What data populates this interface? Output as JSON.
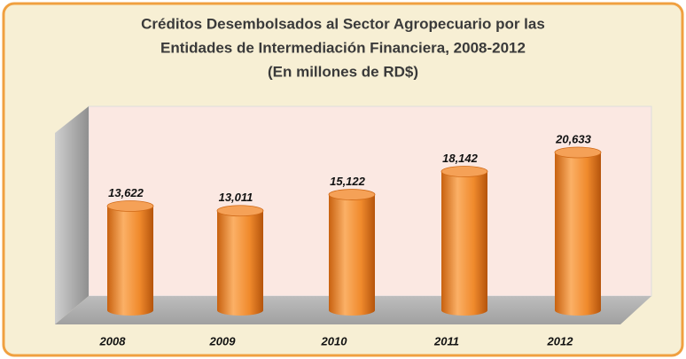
{
  "chart_data": {
    "type": "bar",
    "title": [
      "Créditos Desembolsados al Sector Agropecuario por las",
      "Entidades de Intermediación Financiera, 2008-2012",
      "(En millones de RD$)"
    ],
    "categories": [
      "2008",
      "2009",
      "2010",
      "2011",
      "2012"
    ],
    "values": [
      13622,
      13011,
      15122,
      18142,
      20633
    ],
    "value_labels": [
      "13,622",
      "13,011",
      "15,122",
      "18,142",
      "20,633"
    ],
    "color": "#f08a2c"
  }
}
